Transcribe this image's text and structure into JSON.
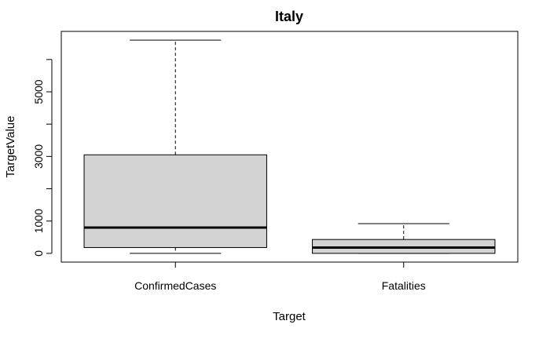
{
  "chart_data": {
    "type": "boxplot",
    "title": "Italy",
    "xlabel": "Target",
    "ylabel": "TargetValue",
    "categories": [
      "ConfirmedCases",
      "Fatalities"
    ],
    "boxes": [
      {
        "name": "ConfirmedCases",
        "min": 0,
        "q1": 180,
        "median": 800,
        "q3": 3050,
        "max": 6600
      },
      {
        "name": "Fatalities",
        "min": 0,
        "q1": 0,
        "median": 180,
        "q3": 430,
        "max": 920
      }
    ],
    "yticks": [
      0,
      1000,
      3000,
      5000
    ],
    "ylim": [
      -270,
      6870
    ],
    "grid": false,
    "colors": {
      "box_fill": "#d3d3d3",
      "stroke": "#000000"
    }
  }
}
